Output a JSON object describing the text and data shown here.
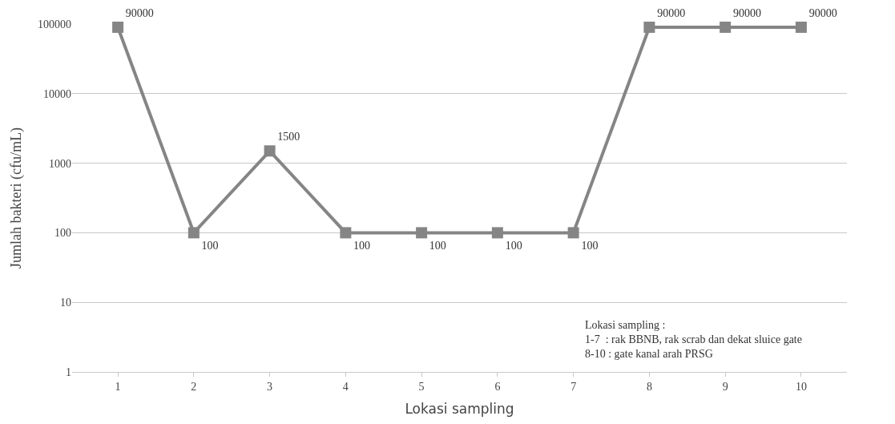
{
  "chart_data": {
    "type": "line",
    "xlabel": "Lokasi sampling",
    "ylabel": "Jumlah bakteri (cfu/mL)",
    "categories": [
      "1",
      "2",
      "3",
      "4",
      "5",
      "6",
      "7",
      "8",
      "9",
      "10"
    ],
    "series": [
      {
        "color": "#858585",
        "values": [
          90000,
          100,
          1500,
          100,
          100,
          100,
          100,
          90000,
          90000,
          90000
        ]
      }
    ],
    "log": true,
    "ylim": [
      1,
      100000
    ],
    "yticks": [
      1,
      10,
      100,
      1000,
      10000,
      100000
    ],
    "grid": "y",
    "marker": "square",
    "line_style": "solid",
    "data_labels": true,
    "annotations": [
      "Lokasi sampling :\n1-7  : rak BBNB, rak scrab dan dekat sluice gate\n8-10 : gate kanal arah PRSG"
    ]
  }
}
